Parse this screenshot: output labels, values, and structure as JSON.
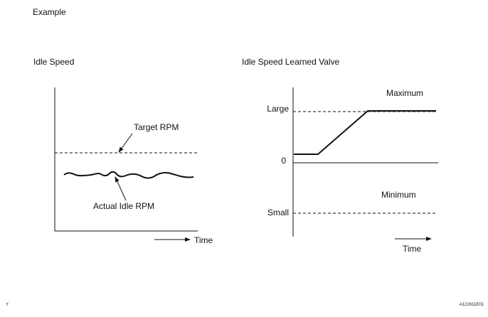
{
  "header": {
    "title": "Example"
  },
  "left_chart": {
    "title": "Idle Speed",
    "target_label": "Target RPM",
    "actual_label": "Actual Idle RPM",
    "x_label": "Time"
  },
  "right_chart": {
    "title": "Idle Speed Learned Valve",
    "y_ticks": [
      "Large",
      "0",
      "Small"
    ],
    "maximum_label": "Maximum",
    "minimum_label": "Minimum",
    "x_label": "Time"
  },
  "footer": {
    "left_mark": "Y",
    "figure_code": "A121611E01"
  },
  "colors": {
    "ink": "#111111",
    "background": "#ffffff"
  }
}
